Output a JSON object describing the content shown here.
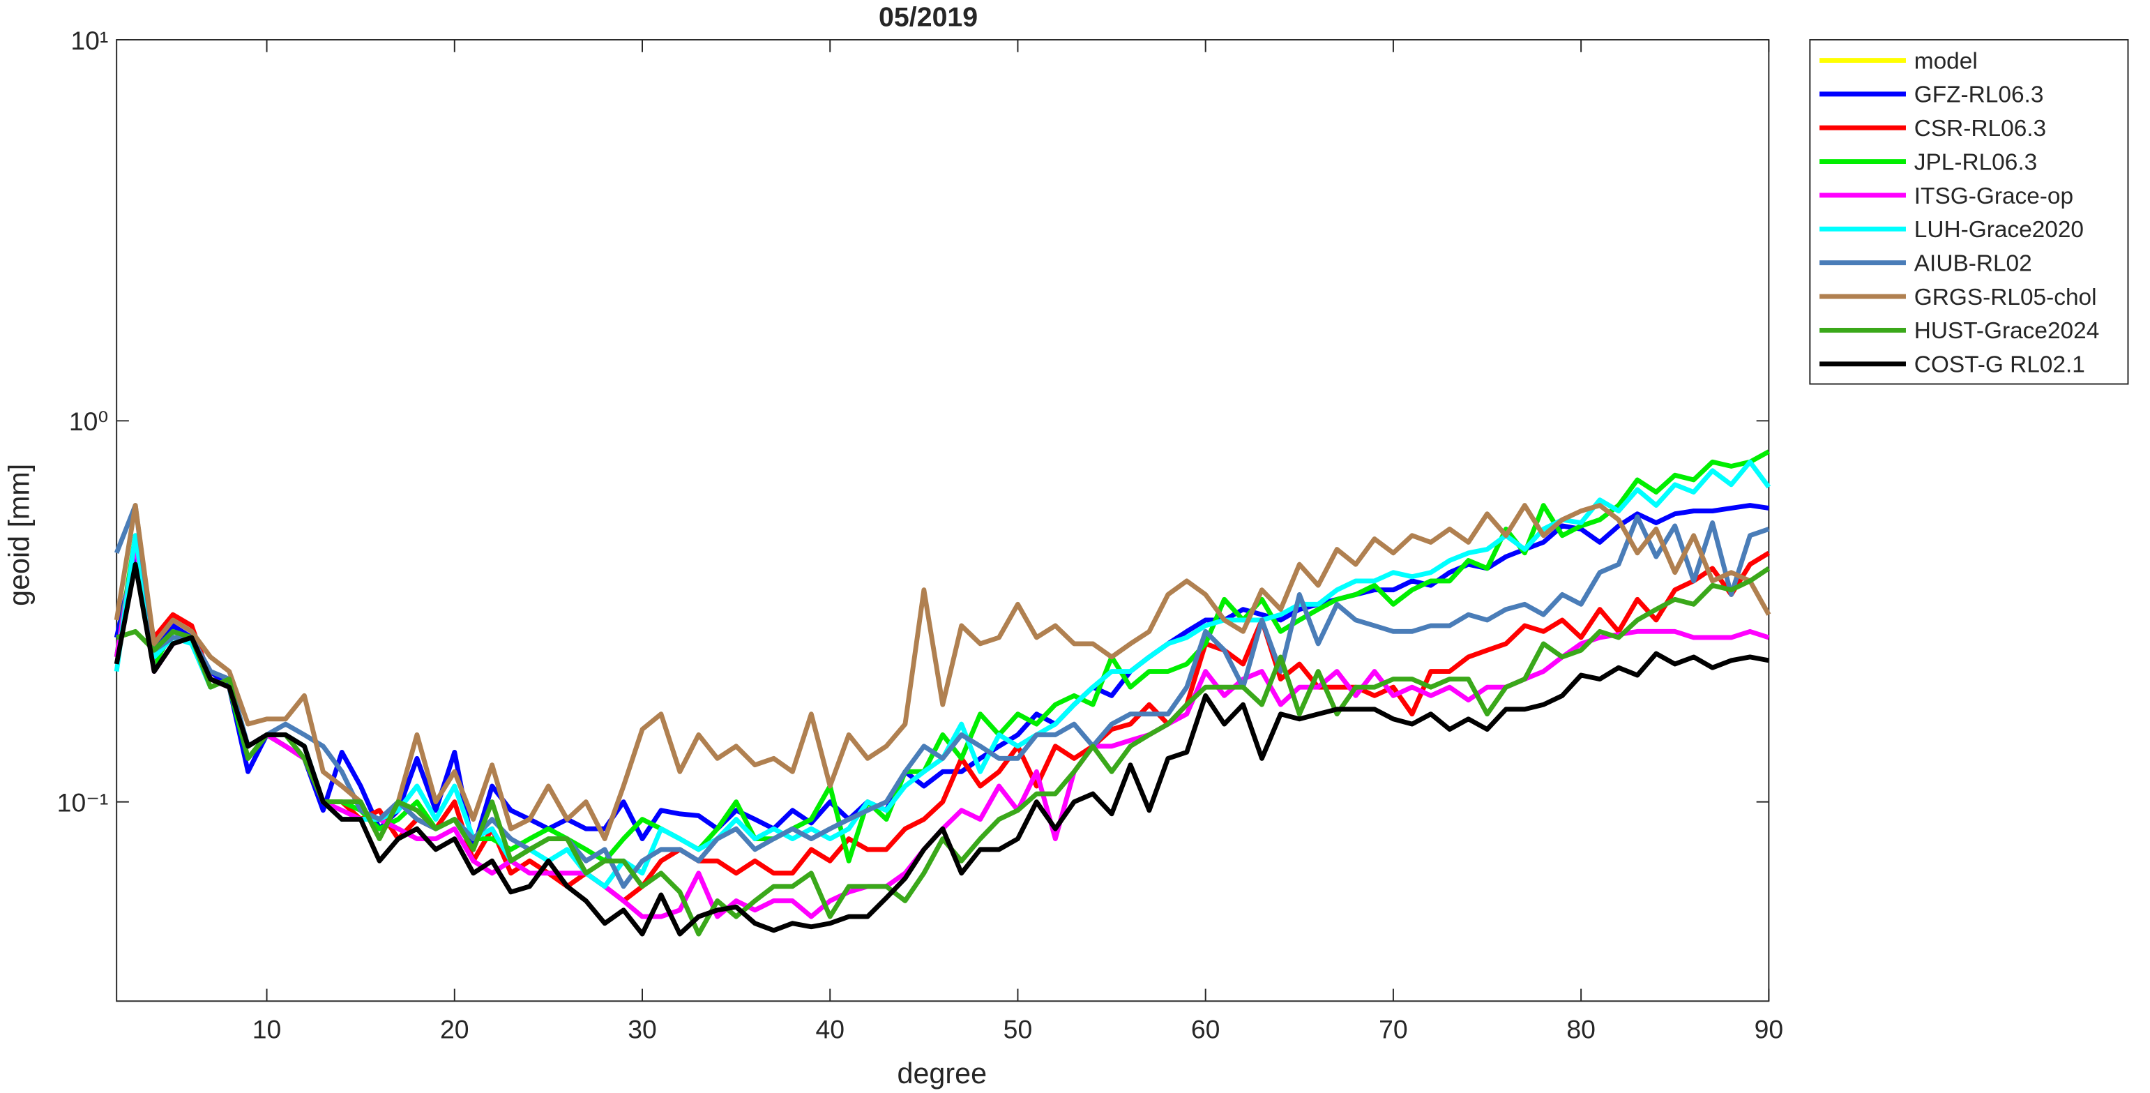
{
  "chart_data": {
    "type": "line",
    "title": "05/2019",
    "xlabel": "degree",
    "ylabel": "geoid [mm]",
    "yscale": "log",
    "xlim": [
      2,
      90
    ],
    "ylim": [
      0.03,
      10
    ],
    "xticks": [
      10,
      20,
      30,
      40,
      50,
      60,
      70,
      80,
      90
    ],
    "yticks": [
      {
        "value": 0.1,
        "label": "10⁻¹"
      },
      {
        "value": 1,
        "label": "10⁰"
      },
      {
        "value": 10,
        "label": "10¹"
      }
    ],
    "legend": "outside-top-right",
    "x": [
      2,
      3,
      4,
      5,
      6,
      7,
      8,
      9,
      10,
      11,
      12,
      13,
      14,
      15,
      16,
      17,
      18,
      19,
      20,
      21,
      22,
      23,
      24,
      25,
      26,
      27,
      28,
      29,
      30,
      31,
      32,
      33,
      34,
      35,
      36,
      37,
      38,
      39,
      40,
      41,
      42,
      43,
      44,
      45,
      46,
      47,
      48,
      49,
      50,
      51,
      52,
      53,
      54,
      55,
      56,
      57,
      58,
      59,
      60,
      61,
      62,
      63,
      64,
      65,
      66,
      67,
      68,
      69,
      70,
      71,
      72,
      73,
      74,
      75,
      76,
      77,
      78,
      79,
      80,
      81,
      82,
      83,
      84,
      85,
      86,
      87,
      88,
      89,
      90
    ],
    "series": [
      {
        "name": "model",
        "color": "#ffff00",
        "values": [
          null,
          null,
          null,
          null,
          null,
          null,
          null,
          null,
          null,
          null,
          null,
          null,
          null,
          null,
          null,
          null,
          null,
          null,
          null,
          null,
          null,
          null,
          null,
          null,
          null,
          null,
          null,
          null,
          null,
          null,
          null,
          null,
          null,
          null,
          null,
          null,
          null,
          null,
          null,
          null,
          null,
          null,
          null,
          null,
          null,
          null,
          null,
          null,
          null,
          null,
          null,
          null,
          null,
          null,
          null,
          null,
          null,
          null,
          null,
          null,
          null,
          null,
          null,
          null,
          null,
          null,
          null,
          null,
          null,
          null,
          null,
          null,
          null,
          null,
          null,
          null,
          null,
          null,
          null,
          null,
          null,
          null,
          null,
          null,
          null,
          null,
          null,
          null,
          null
        ]
      },
      {
        "name": "GFZ-RL06.3",
        "color": "#0000ff",
        "values": [
          0.27,
          0.45,
          0.25,
          0.29,
          0.27,
          0.22,
          0.2,
          0.12,
          0.15,
          0.14,
          0.13,
          0.095,
          0.135,
          0.11,
          0.085,
          0.095,
          0.13,
          0.095,
          0.135,
          0.075,
          0.11,
          0.095,
          0.09,
          0.085,
          0.09,
          0.085,
          0.085,
          0.1,
          0.08,
          0.095,
          0.093,
          0.092,
          0.085,
          0.095,
          0.09,
          0.085,
          0.095,
          0.088,
          0.1,
          0.09,
          0.1,
          0.095,
          0.12,
          0.11,
          0.12,
          0.12,
          0.13,
          0.14,
          0.15,
          0.17,
          0.16,
          0.18,
          0.2,
          0.19,
          0.22,
          0.24,
          0.26,
          0.28,
          0.3,
          0.3,
          0.32,
          0.31,
          0.3,
          0.32,
          0.33,
          0.34,
          0.35,
          0.36,
          0.36,
          0.38,
          0.37,
          0.4,
          0.42,
          0.41,
          0.44,
          0.46,
          0.48,
          0.53,
          0.52,
          0.48,
          0.53,
          0.57,
          0.54,
          0.57,
          0.58,
          0.58,
          0.59,
          0.6,
          0.59
        ]
      },
      {
        "name": "CSR-RL06.3",
        "color": "#ff0000",
        "values": [
          0.24,
          0.42,
          0.27,
          0.31,
          0.29,
          0.21,
          0.2,
          0.14,
          0.15,
          0.14,
          0.13,
          0.1,
          0.1,
          0.09,
          0.095,
          0.08,
          0.09,
          0.085,
          0.1,
          0.07,
          0.085,
          0.065,
          0.07,
          0.065,
          0.06,
          0.065,
          0.06,
          0.055,
          0.06,
          0.07,
          0.075,
          0.07,
          0.07,
          0.065,
          0.07,
          0.065,
          0.065,
          0.075,
          0.07,
          0.08,
          0.075,
          0.075,
          0.085,
          0.09,
          0.1,
          0.13,
          0.11,
          0.12,
          0.14,
          0.11,
          0.14,
          0.13,
          0.14,
          0.155,
          0.16,
          0.18,
          0.16,
          0.18,
          0.26,
          0.25,
          0.23,
          0.3,
          0.21,
          0.23,
          0.2,
          0.2,
          0.2,
          0.19,
          0.2,
          0.17,
          0.22,
          0.22,
          0.24,
          0.25,
          0.26,
          0.29,
          0.28,
          0.3,
          0.27,
          0.32,
          0.28,
          0.34,
          0.3,
          0.36,
          0.38,
          0.41,
          0.35,
          0.42,
          0.45
        ]
      },
      {
        "name": "JPL-RL06.3",
        "color": "#00ee00",
        "values": [
          0.24,
          0.5,
          0.23,
          0.28,
          0.27,
          0.21,
          0.2,
          0.13,
          0.15,
          0.14,
          0.13,
          0.1,
          0.1,
          0.095,
          0.085,
          0.09,
          0.1,
          0.085,
          0.09,
          0.08,
          0.08,
          0.075,
          0.08,
          0.085,
          0.08,
          0.075,
          0.07,
          0.08,
          0.09,
          0.085,
          0.08,
          0.075,
          0.085,
          0.1,
          0.08,
          0.08,
          0.085,
          0.09,
          0.11,
          0.07,
          0.1,
          0.09,
          0.12,
          0.12,
          0.15,
          0.13,
          0.17,
          0.15,
          0.17,
          0.16,
          0.18,
          0.19,
          0.18,
          0.24,
          0.2,
          0.22,
          0.22,
          0.23,
          0.26,
          0.34,
          0.3,
          0.34,
          0.28,
          0.3,
          0.32,
          0.34,
          0.35,
          0.37,
          0.33,
          0.36,
          0.38,
          0.38,
          0.43,
          0.41,
          0.52,
          0.45,
          0.6,
          0.5,
          0.53,
          0.55,
          0.6,
          0.7,
          0.65,
          0.72,
          0.7,
          0.78,
          0.76,
          0.78,
          0.83
        ]
      },
      {
        "name": "ITSG-Grace-op",
        "color": "#ff00ff",
        "values": [
          0.24,
          0.48,
          0.22,
          0.26,
          0.27,
          0.21,
          0.2,
          0.14,
          0.15,
          0.14,
          0.13,
          0.1,
          0.095,
          0.09,
          0.09,
          0.085,
          0.08,
          0.08,
          0.085,
          0.07,
          0.065,
          0.07,
          0.065,
          0.065,
          0.065,
          0.065,
          0.06,
          0.055,
          0.05,
          0.05,
          0.052,
          0.065,
          0.05,
          0.055,
          0.052,
          0.055,
          0.055,
          0.05,
          0.055,
          0.058,
          0.06,
          0.06,
          0.065,
          0.075,
          0.085,
          0.095,
          0.09,
          0.11,
          0.095,
          0.12,
          0.08,
          0.12,
          0.14,
          0.14,
          0.145,
          0.15,
          0.16,
          0.17,
          0.22,
          0.19,
          0.21,
          0.22,
          0.18,
          0.2,
          0.2,
          0.22,
          0.19,
          0.22,
          0.19,
          0.2,
          0.19,
          0.2,
          0.185,
          0.2,
          0.2,
          0.21,
          0.22,
          0.24,
          0.26,
          0.27,
          0.275,
          0.28,
          0.28,
          0.28,
          0.27,
          0.27,
          0.27,
          0.28,
          0.27
        ]
      },
      {
        "name": "LUH-Grace2020",
        "color": "#00ffff",
        "values": [
          0.22,
          0.5,
          0.24,
          0.27,
          0.26,
          0.2,
          0.21,
          0.14,
          0.15,
          0.15,
          0.14,
          0.1,
          0.09,
          0.09,
          0.09,
          0.095,
          0.11,
          0.09,
          0.11,
          0.08,
          0.085,
          0.07,
          0.075,
          0.07,
          0.075,
          0.065,
          0.06,
          0.07,
          0.065,
          0.085,
          0.08,
          0.075,
          0.08,
          0.09,
          0.08,
          0.085,
          0.08,
          0.085,
          0.08,
          0.085,
          0.1,
          0.095,
          0.11,
          0.12,
          0.13,
          0.16,
          0.12,
          0.15,
          0.14,
          0.15,
          0.16,
          0.18,
          0.2,
          0.22,
          0.22,
          0.24,
          0.26,
          0.27,
          0.29,
          0.3,
          0.3,
          0.3,
          0.31,
          0.33,
          0.33,
          0.36,
          0.38,
          0.38,
          0.4,
          0.39,
          0.4,
          0.43,
          0.45,
          0.46,
          0.5,
          0.46,
          0.52,
          0.55,
          0.54,
          0.62,
          0.58,
          0.66,
          0.6,
          0.68,
          0.65,
          0.74,
          0.68,
          0.78,
          0.67
        ]
      },
      {
        "name": "AIUB-RL02",
        "color": "#4a7db8",
        "values": [
          0.45,
          0.6,
          0.25,
          0.27,
          0.27,
          0.22,
          0.21,
          0.14,
          0.15,
          0.16,
          0.15,
          0.14,
          0.12,
          0.095,
          0.09,
          0.1,
          0.09,
          0.085,
          0.09,
          0.08,
          0.09,
          0.08,
          0.075,
          0.08,
          0.08,
          0.07,
          0.075,
          0.06,
          0.07,
          0.075,
          0.075,
          0.07,
          0.08,
          0.085,
          0.075,
          0.08,
          0.085,
          0.08,
          0.085,
          0.09,
          0.095,
          0.1,
          0.12,
          0.14,
          0.13,
          0.15,
          0.14,
          0.13,
          0.13,
          0.15,
          0.15,
          0.16,
          0.14,
          0.16,
          0.17,
          0.17,
          0.17,
          0.2,
          0.28,
          0.25,
          0.2,
          0.3,
          0.22,
          0.35,
          0.26,
          0.33,
          0.3,
          0.29,
          0.28,
          0.28,
          0.29,
          0.29,
          0.31,
          0.3,
          0.32,
          0.33,
          0.31,
          0.35,
          0.33,
          0.4,
          0.42,
          0.56,
          0.44,
          0.53,
          0.38,
          0.54,
          0.35,
          0.5,
          0.52
        ]
      },
      {
        "name": "GRGS-RL05-chol",
        "color": "#b08050",
        "values": [
          0.3,
          0.6,
          0.26,
          0.3,
          0.28,
          0.24,
          0.22,
          0.16,
          0.165,
          0.165,
          0.19,
          0.12,
          0.11,
          0.1,
          0.08,
          0.1,
          0.15,
          0.1,
          0.12,
          0.09,
          0.125,
          0.085,
          0.09,
          0.11,
          0.09,
          0.1,
          0.08,
          0.11,
          0.155,
          0.17,
          0.12,
          0.15,
          0.13,
          0.14,
          0.125,
          0.13,
          0.12,
          0.17,
          0.11,
          0.15,
          0.13,
          0.14,
          0.16,
          0.36,
          0.18,
          0.29,
          0.26,
          0.27,
          0.33,
          0.27,
          0.29,
          0.26,
          0.26,
          0.24,
          0.26,
          0.28,
          0.35,
          0.38,
          0.35,
          0.3,
          0.28,
          0.36,
          0.32,
          0.42,
          0.37,
          0.46,
          0.42,
          0.49,
          0.45,
          0.5,
          0.48,
          0.52,
          0.48,
          0.57,
          0.5,
          0.6,
          0.5,
          0.55,
          0.58,
          0.6,
          0.55,
          0.45,
          0.52,
          0.4,
          0.5,
          0.38,
          0.4,
          0.38,
          0.31
        ]
      },
      {
        "name": "HUST-Grace2024",
        "color": "#3aa81a",
        "values": [
          0.27,
          0.28,
          0.25,
          0.28,
          0.27,
          0.2,
          0.21,
          0.13,
          0.15,
          0.15,
          0.13,
          0.1,
          0.1,
          0.1,
          0.08,
          0.1,
          0.095,
          0.085,
          0.09,
          0.075,
          0.1,
          0.07,
          0.075,
          0.08,
          0.08,
          0.065,
          0.07,
          0.07,
          0.06,
          0.065,
          0.058,
          0.045,
          0.055,
          0.05,
          0.055,
          0.06,
          0.06,
          0.065,
          0.05,
          0.06,
          0.06,
          0.06,
          0.055,
          0.065,
          0.08,
          0.07,
          0.08,
          0.09,
          0.095,
          0.105,
          0.105,
          0.12,
          0.14,
          0.12,
          0.14,
          0.15,
          0.16,
          0.18,
          0.2,
          0.2,
          0.2,
          0.18,
          0.24,
          0.17,
          0.22,
          0.17,
          0.2,
          0.2,
          0.21,
          0.21,
          0.2,
          0.21,
          0.21,
          0.17,
          0.2,
          0.21,
          0.26,
          0.24,
          0.25,
          0.28,
          0.27,
          0.3,
          0.32,
          0.34,
          0.33,
          0.37,
          0.36,
          0.38,
          0.41
        ]
      },
      {
        "name": "COST-G RL02.1",
        "color": "#000000",
        "values": [
          0.23,
          0.42,
          0.22,
          0.26,
          0.27,
          0.21,
          0.2,
          0.14,
          0.15,
          0.15,
          0.14,
          0.1,
          0.09,
          0.09,
          0.07,
          0.08,
          0.085,
          0.075,
          0.08,
          0.065,
          0.07,
          0.058,
          0.06,
          0.07,
          0.06,
          0.055,
          0.048,
          0.052,
          0.045,
          0.057,
          0.045,
          0.05,
          0.052,
          0.053,
          0.048,
          0.046,
          0.048,
          0.047,
          0.048,
          0.05,
          0.05,
          0.056,
          0.063,
          0.075,
          0.085,
          0.065,
          0.075,
          0.075,
          0.08,
          0.1,
          0.085,
          0.1,
          0.105,
          0.093,
          0.125,
          0.095,
          0.13,
          0.135,
          0.19,
          0.16,
          0.18,
          0.13,
          0.17,
          0.165,
          0.17,
          0.175,
          0.175,
          0.175,
          0.165,
          0.16,
          0.17,
          0.155,
          0.165,
          0.155,
          0.175,
          0.175,
          0.18,
          0.19,
          0.215,
          0.21,
          0.225,
          0.215,
          0.245,
          0.23,
          0.24,
          0.225,
          0.235,
          0.24,
          0.235
        ]
      }
    ]
  }
}
